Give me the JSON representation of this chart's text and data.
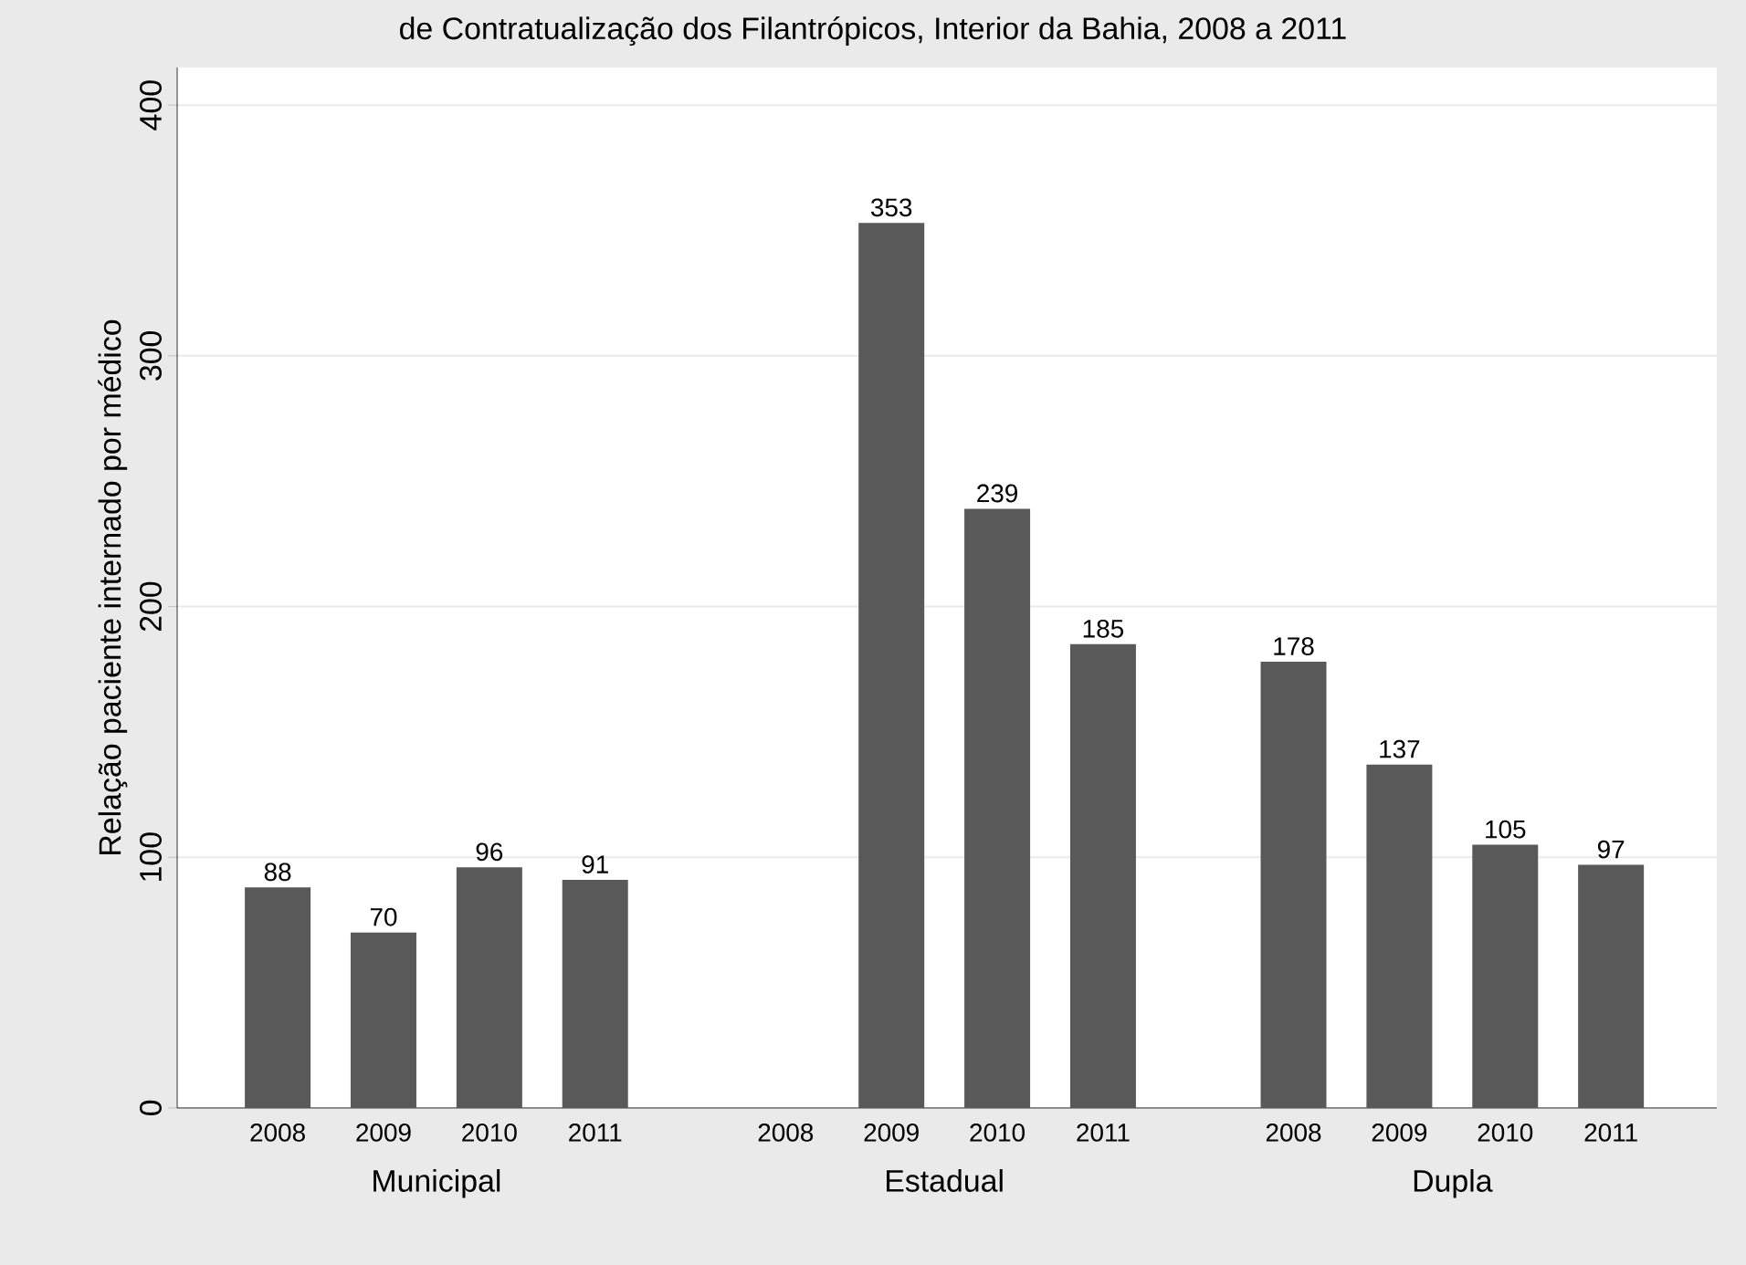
{
  "chart_data": {
    "type": "bar",
    "title": "de Contratualização dos Filantrópicos, Interior da Bahia, 2008 a 2011",
    "ylabel": "Relação paciente internado por médico",
    "categories": [
      "2008",
      "2009",
      "2010",
      "2011",
      "2008",
      "2009",
      "2010",
      "2011",
      "2008",
      "2009",
      "2010",
      "2011"
    ],
    "series": [
      {
        "name": "Municipal",
        "color": "#595959",
        "values": [
          88,
          70,
          96,
          91,
          null,
          null,
          null,
          null,
          null,
          null,
          null,
          null
        ]
      },
      {
        "name": "Estadual",
        "color": "#595959",
        "values": [
          null,
          null,
          null,
          null,
          null,
          353,
          239,
          185,
          null,
          null,
          null,
          null
        ]
      },
      {
        "name": "Dupla",
        "color": "#595959",
        "values": [
          null,
          null,
          null,
          null,
          null,
          null,
          null,
          null,
          178,
          137,
          105,
          97
        ]
      }
    ],
    "ylim": [
      0,
      415
    ],
    "yticks": [
      0,
      100,
      200,
      300,
      400
    ],
    "grid": "y",
    "data_labels": true
  }
}
